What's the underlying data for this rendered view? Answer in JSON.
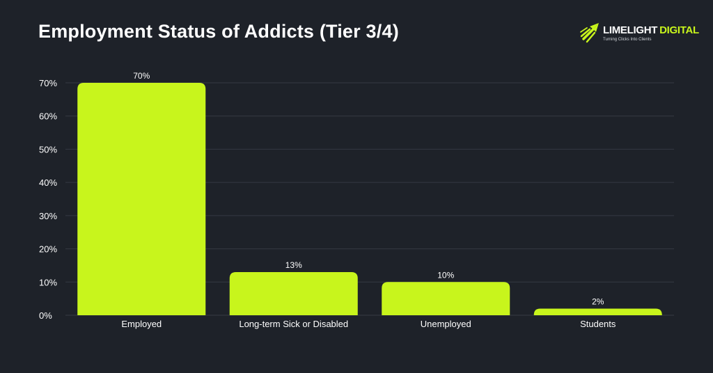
{
  "chart_data": {
    "type": "bar",
    "title": "Employment Status of Addicts (Tier 3/4)",
    "categories": [
      "Employed",
      "Long-term Sick or Disabled",
      "Unemployed",
      "Students"
    ],
    "values": [
      70,
      13,
      10,
      2
    ],
    "data_labels": [
      "70%",
      "13%",
      "10%",
      "2%"
    ],
    "ylim": [
      0,
      70
    ],
    "yticks": [
      0,
      10,
      20,
      30,
      40,
      50,
      60,
      70
    ],
    "ytick_labels": [
      "0%",
      "10%",
      "20%",
      "30%",
      "40%",
      "50%",
      "60%",
      "70%"
    ],
    "xlabel": "",
    "ylabel": "",
    "grid": true,
    "bar_color": "#c8f51c"
  },
  "logo": {
    "word1": "LIMELIGHT",
    "word2": "DIGITAL",
    "tagline": "Turning Clicks Into Clients"
  },
  "colors": {
    "background": "#1e2229",
    "accent": "#c8f51c"
  }
}
